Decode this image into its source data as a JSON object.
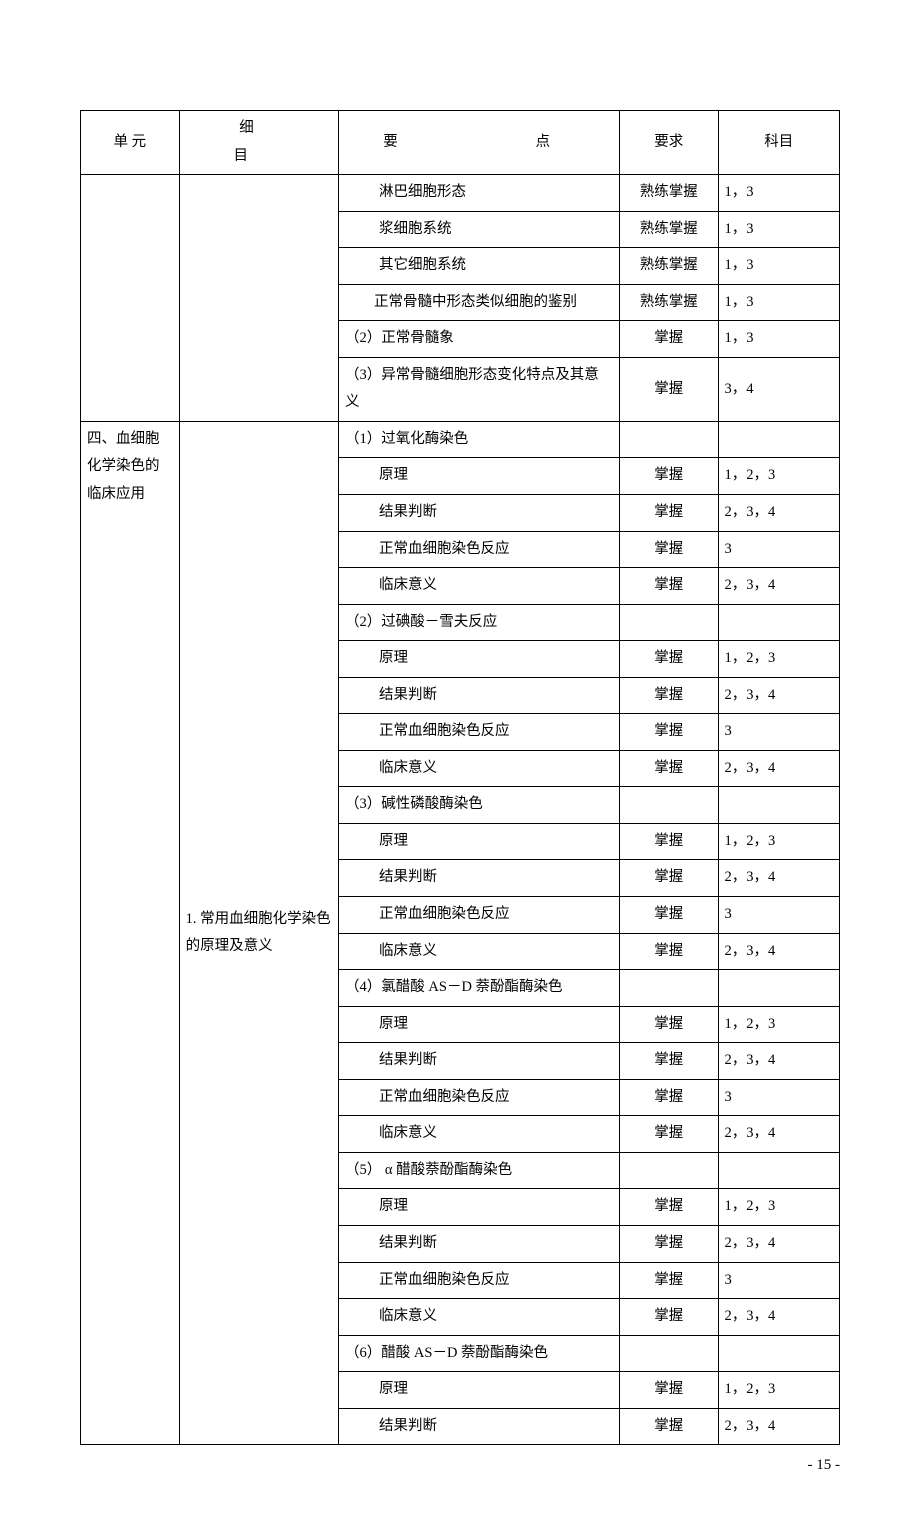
{
  "headers": {
    "unit": "单 元",
    "detail": "细　　目",
    "point": "要　　点",
    "req": "要求",
    "subj": "科目"
  },
  "col1_unit": "四、血细胞化学染色的临床应用",
  "col2_detail": "1. 常用血细胞化学染色的原理及意义",
  "rows": [
    {
      "point": "淋巴细胞形态",
      "indent": true,
      "req": "熟练掌握",
      "subj": "1，3"
    },
    {
      "point": "浆细胞系统",
      "indent": true,
      "req": "熟练掌握",
      "subj": "1，3"
    },
    {
      "point": "其它细胞系统",
      "indent": true,
      "req": "熟练掌握",
      "subj": "1，3"
    },
    {
      "point": "　　正常骨髓中形态类似细胞的鉴别",
      "indent": false,
      "req": "熟练掌握",
      "subj": "1，3"
    },
    {
      "point": "（2）正常骨髓象",
      "indent": false,
      "req": "掌握",
      "subj": "1，3"
    },
    {
      "point": "（3）异常骨髓细胞形态变化特点及其意义",
      "indent": false,
      "req": "掌握",
      "subj": "3，4"
    },
    {
      "point": "（1）过氧化酶染色",
      "indent": false,
      "req": "",
      "subj": "",
      "section_start": true
    },
    {
      "point": "原理",
      "indent": true,
      "req": "掌握",
      "subj": "1，2，3"
    },
    {
      "point": "结果判断",
      "indent": true,
      "req": "掌握",
      "subj": "2，3，4"
    },
    {
      "point": "正常血细胞染色反应",
      "indent": true,
      "req": "掌握",
      "subj": "3"
    },
    {
      "point": "临床意义",
      "indent": true,
      "req": "掌握",
      "subj": "2，3，4"
    },
    {
      "point": "（2）过碘酸－雪夫反应",
      "indent": false,
      "req": "",
      "subj": ""
    },
    {
      "point": "原理",
      "indent": true,
      "req": "掌握",
      "subj": "1，2，3"
    },
    {
      "point": "结果判断",
      "indent": true,
      "req": "掌握",
      "subj": "2，3，4"
    },
    {
      "point": "正常血细胞染色反应",
      "indent": true,
      "req": "掌握",
      "subj": "3"
    },
    {
      "point": "临床意义",
      "indent": true,
      "req": "掌握",
      "subj": "2，3，4"
    },
    {
      "point": "（3）碱性磷酸酶染色",
      "indent": false,
      "req": "",
      "subj": ""
    },
    {
      "point": "原理",
      "indent": true,
      "req": "掌握",
      "subj": "1，2，3"
    },
    {
      "point": "结果判断",
      "indent": true,
      "req": "掌握",
      "subj": "2，3，4"
    },
    {
      "point": "正常血细胞染色反应",
      "indent": true,
      "req": "掌握",
      "subj": "3"
    },
    {
      "point": "临床意义",
      "indent": true,
      "req": "掌握",
      "subj": "2，3，4"
    },
    {
      "point": "（4）氯醋酸 AS－D 萘酚酯酶染色",
      "indent": false,
      "req": "",
      "subj": ""
    },
    {
      "point": "原理",
      "indent": true,
      "req": "掌握",
      "subj": "1，2，3"
    },
    {
      "point": "结果判断",
      "indent": true,
      "req": "掌握",
      "subj": "2，3，4"
    },
    {
      "point": "正常血细胞染色反应",
      "indent": true,
      "req": "掌握",
      "subj": "3"
    },
    {
      "point": "临床意义",
      "indent": true,
      "req": "掌握",
      "subj": "2，3，4"
    },
    {
      "point": "（5） α 醋酸萘酚酯酶染色",
      "indent": false,
      "req": "",
      "subj": ""
    },
    {
      "point": "原理",
      "indent": true,
      "req": "掌握",
      "subj": "1，2，3"
    },
    {
      "point": "结果判断",
      "indent": true,
      "req": "掌握",
      "subj": "2，3，4"
    },
    {
      "point": "正常血细胞染色反应",
      "indent": true,
      "req": "掌握",
      "subj": "3"
    },
    {
      "point": "临床意义",
      "indent": true,
      "req": "掌握",
      "subj": "2，3，4"
    },
    {
      "point": "（6）醋酸 AS－D 萘酚酯酶染色",
      "indent": false,
      "req": "",
      "subj": ""
    },
    {
      "point": "原理",
      "indent": true,
      "req": "掌握",
      "subj": "1，2，3"
    },
    {
      "point": "结果判断",
      "indent": true,
      "req": "掌握",
      "subj": "2，3，4"
    }
  ],
  "page_number": "- 15 -"
}
